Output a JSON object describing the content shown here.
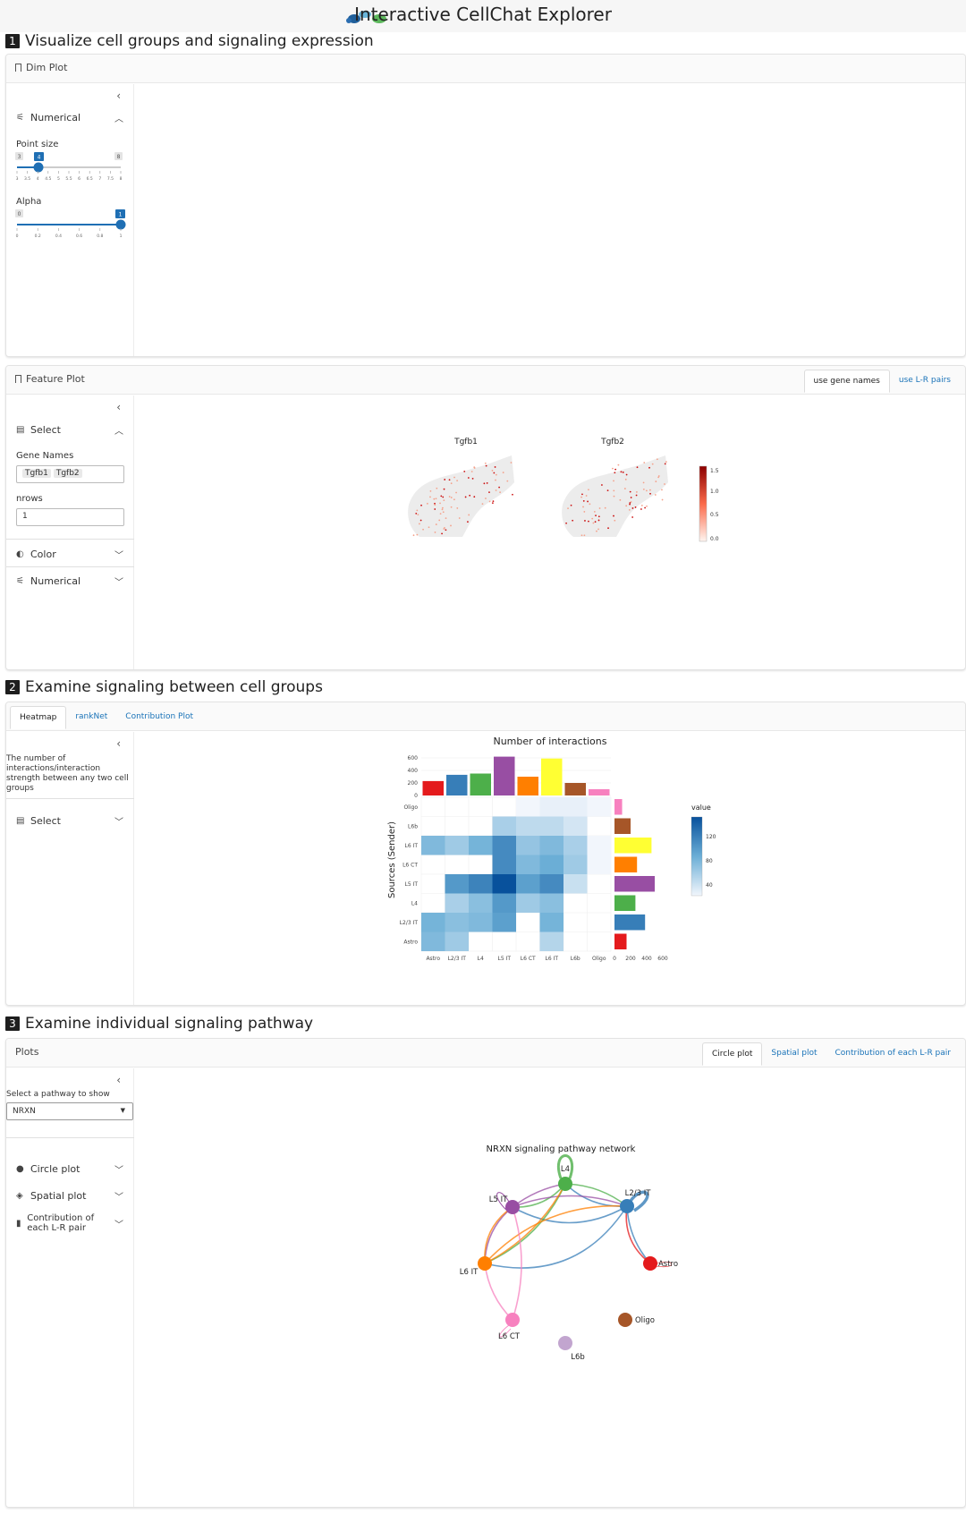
{
  "app": {
    "title": "Interactive CellChat Explorer"
  },
  "section1": {
    "number": "1",
    "title": "Visualize cell groups and signaling expression",
    "dim_plot": {
      "header": "Dim Plot",
      "collapse_icon": "chevron-left-icon",
      "numerical_label": "Numerical",
      "point_size": {
        "label": "Point size",
        "min": "3",
        "max": "8",
        "value": "4",
        "ticks": [
          "3",
          "3.5",
          "4",
          "4.5",
          "5",
          "5.5",
          "6",
          "6.5",
          "7",
          "7.5",
          "8"
        ]
      },
      "alpha": {
        "label": "Alpha",
        "min": "0",
        "max": "1",
        "value": "1",
        "ticks": [
          "0",
          "0.2",
          "0.4",
          "0.6",
          "0.8",
          "1"
        ]
      }
    },
    "feature_plot": {
      "header": "Feature Plot",
      "tabs": [
        "use gene names",
        "use L-R pairs"
      ],
      "select_label": "Select",
      "gene_names_label": "Gene Names",
      "gene_chips": [
        "Tgfb1",
        "Tgfb2"
      ],
      "nrows_label": "nrows",
      "nrows_value": "1",
      "color_label": "Color",
      "numerical_label": "Numerical",
      "panels": [
        "Tgfb1",
        "Tgfb2"
      ],
      "legend_ticks": [
        "1.5",
        "1.0",
        "0.5",
        "0.0"
      ]
    }
  },
  "section2": {
    "number": "2",
    "title": "Examine signaling between cell groups",
    "tabs": [
      "Heatmap",
      "rankNet",
      "Contribution Plot"
    ],
    "description": "The number of interactions/interaction strength between any two cell groups",
    "select_label": "Select"
  },
  "section3": {
    "number": "3",
    "title": "Examine individual signaling pathway",
    "header": "Plots",
    "tabs": [
      "Circle plot",
      "Spatial plot",
      "Contribution of each L-R pair"
    ],
    "pathway_label": "Select a pathway to show",
    "pathway_value": "NRXN",
    "accordions": [
      "Circle plot",
      "Spatial plot",
      "Contribution of each L-R pair"
    ],
    "network": {
      "title": "NRXN signaling pathway network",
      "nodes": [
        {
          "name": "L4",
          "color": "#4daf4a"
        },
        {
          "name": "L2/3 IT",
          "color": "#377eb8"
        },
        {
          "name": "L5 IT",
          "color": "#984ea3"
        },
        {
          "name": "Astro",
          "color": "#e41a1c"
        },
        {
          "name": "L6 IT",
          "color": "#ff7f00"
        },
        {
          "name": "L6 CT",
          "color": "#f781bf"
        },
        {
          "name": "Oligo",
          "color": "#a65628"
        },
        {
          "name": "L6b",
          "color": "#c2a5cf"
        }
      ]
    }
  },
  "chart_data": {
    "type": "heatmap",
    "title": "Number of interactions",
    "ylabel": "Sources (Sender)",
    "xlabel": "",
    "rows": [
      "Oligo",
      "L6b",
      "L6 IT",
      "L6 CT",
      "L5 IT",
      "L4",
      "L2/3 IT",
      "Astro"
    ],
    "cols": [
      "Astro",
      "L2/3 IT",
      "L4",
      "L5 IT",
      "L6 CT",
      "L6 IT",
      "L6b",
      "Oligo"
    ],
    "values": [
      [
        null,
        null,
        null,
        null,
        20,
        25,
        25,
        20
      ],
      [
        null,
        null,
        null,
        55,
        45,
        45,
        35,
        null
      ],
      [
        75,
        60,
        80,
        110,
        65,
        75,
        55,
        20
      ],
      [
        null,
        null,
        null,
        110,
        75,
        85,
        60,
        20
      ],
      [
        null,
        100,
        115,
        150,
        95,
        110,
        40,
        null
      ],
      [
        null,
        55,
        70,
        100,
        60,
        70,
        null,
        null
      ],
      [
        80,
        70,
        75,
        95,
        null,
        80,
        null,
        null
      ],
      [
        75,
        60,
        null,
        null,
        null,
        50,
        null,
        null
      ]
    ],
    "top_bars": {
      "ticks": [
        "600",
        "400",
        "200",
        "0"
      ],
      "max": 600,
      "values": [
        230,
        330,
        350,
        620,
        300,
        590,
        200,
        100
      ]
    },
    "side_bars": {
      "ticks": [
        "0",
        "200",
        "400",
        "600"
      ],
      "max": 600,
      "values": [
        95,
        200,
        460,
        280,
        500,
        260,
        380,
        150
      ]
    },
    "group_colors": [
      "#e41a1c",
      "#377eb8",
      "#4daf4a",
      "#984ea3",
      "#ff7f00",
      "#ffff33",
      "#a65628",
      "#f781bf"
    ],
    "side_colors": [
      "#f781bf",
      "#a65628",
      "#ffff33",
      "#ff7f00",
      "#984ea3",
      "#4daf4a",
      "#377eb8",
      "#e41a1c"
    ],
    "legend": {
      "title": "value",
      "ticks": [
        "120",
        "80",
        "40"
      ],
      "range": [
        20,
        150
      ]
    }
  }
}
